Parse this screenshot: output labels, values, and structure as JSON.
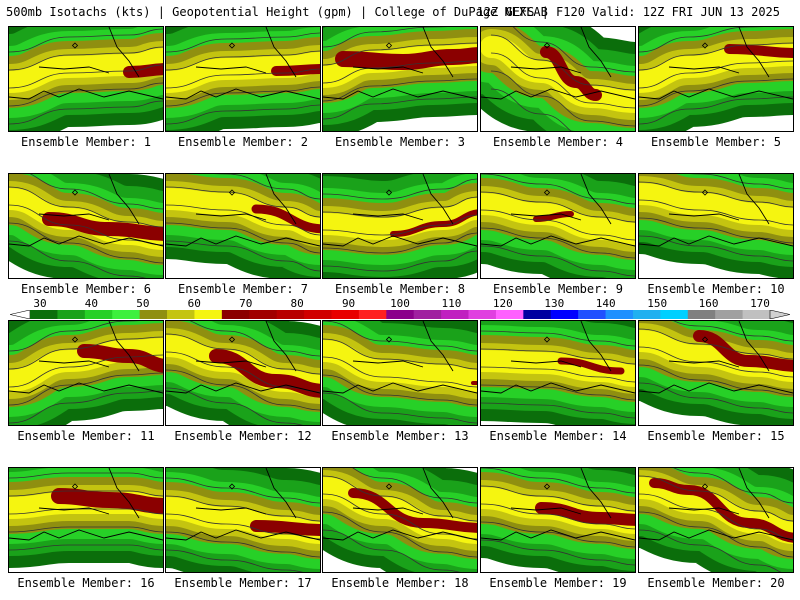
{
  "header": {
    "title_left": "500mb Isotachs (kts) | Geopotential Height (gpm) | College of DuPage NEXLAB",
    "title_right": "12Z GEFS | F120 Valid: 12Z FRI JUN 13 2025"
  },
  "colorbar": {
    "labels": [
      "30",
      "40",
      "50",
      "60",
      "70",
      "80",
      "90",
      "100",
      "110",
      "120",
      "130",
      "140",
      "150",
      "160",
      "170"
    ],
    "colors": [
      "#0b6e0b",
      "#1aa21a",
      "#27d027",
      "#3ef03e",
      "#8f8f10",
      "#c4c410",
      "#f5f510",
      "#8b0000",
      "#a10000",
      "#b80000",
      "#d00000",
      "#e80000",
      "#ff2020",
      "#8b008b",
      "#a020a0",
      "#c020c0",
      "#e040e0",
      "#ff60ff",
      "#0000a0",
      "#0000ff",
      "#2050ff",
      "#1e90ff",
      "#20b0f0",
      "#00d0ff",
      "#808080",
      "#a0a0a0",
      "#c0c0c0"
    ]
  },
  "panels": [
    {
      "label": "Ensemble Member: 1",
      "jet": [
        [
          0,
          55
        ],
        [
          60,
          40
        ],
        [
          120,
          38
        ],
        [
          155,
          32
        ]
      ],
      "core": [
        [
          120,
          45
        ],
        [
          160,
          42
        ]
      ],
      "core_w": 12
    },
    {
      "label": "Ensemble Member: 2",
      "jet": [
        [
          0,
          55
        ],
        [
          60,
          42
        ],
        [
          120,
          40
        ],
        [
          155,
          36
        ]
      ],
      "core": [
        [
          110,
          44
        ],
        [
          160,
          42
        ]
      ],
      "core_w": 10
    },
    {
      "label": "Ensemble Member: 3",
      "jet": [
        [
          0,
          50
        ],
        [
          50,
          35
        ],
        [
          110,
          30
        ],
        [
          155,
          28
        ]
      ],
      "core": [
        [
          20,
          32
        ],
        [
          80,
          35
        ],
        [
          130,
          30
        ],
        [
          160,
          28
        ]
      ],
      "core_w": 16
    },
    {
      "label": "Ensemble Member: 4",
      "jet": [
        [
          10,
          20
        ],
        [
          60,
          45
        ],
        [
          110,
          70
        ],
        [
          155,
          75
        ]
      ],
      "core": [
        [
          65,
          25
        ],
        [
          95,
          55
        ],
        [
          115,
          68
        ]
      ],
      "core_w": 12
    },
    {
      "label": "Ensemble Member: 5",
      "jet": [
        [
          0,
          55
        ],
        [
          50,
          40
        ],
        [
          110,
          30
        ],
        [
          155,
          28
        ]
      ],
      "core": [
        [
          90,
          22
        ],
        [
          160,
          26
        ]
      ],
      "core_w": 10
    },
    {
      "label": "Ensemble Member: 6",
      "jet": [
        [
          0,
          25
        ],
        [
          60,
          45
        ],
        [
          120,
          60
        ],
        [
          155,
          65
        ]
      ],
      "core": [
        [
          40,
          45
        ],
        [
          100,
          55
        ],
        [
          160,
          60
        ]
      ],
      "core_w": 14
    },
    {
      "label": "Ensemble Member: 7",
      "jet": [
        [
          0,
          25
        ],
        [
          60,
          30
        ],
        [
          120,
          45
        ],
        [
          155,
          55
        ]
      ],
      "core": [
        [
          90,
          35
        ],
        [
          160,
          55
        ]
      ],
      "core_w": 9
    },
    {
      "label": "Ensemble Member: 8",
      "jet": [
        [
          0,
          50
        ],
        [
          60,
          55
        ],
        [
          120,
          45
        ],
        [
          155,
          35
        ]
      ],
      "core": [
        [
          70,
          60
        ],
        [
          120,
          50
        ],
        [
          160,
          38
        ]
      ],
      "core_w": 6
    },
    {
      "label": "Ensemble Member: 9",
      "jet": [
        [
          0,
          30
        ],
        [
          60,
          40
        ],
        [
          120,
          55
        ],
        [
          155,
          60
        ]
      ],
      "core": [
        [
          55,
          45
        ],
        [
          90,
          40
        ]
      ],
      "core_w": 6
    },
    {
      "label": "Ensemble Member: 10",
      "jet": [
        [
          0,
          20
        ],
        [
          60,
          30
        ],
        [
          120,
          40
        ],
        [
          155,
          45
        ]
      ],
      "core": [],
      "core_w": 0
    },
    {
      "label": "Ensemble Member: 11",
      "jet": [
        [
          0,
          60
        ],
        [
          60,
          40
        ],
        [
          120,
          30
        ],
        [
          155,
          28
        ]
      ],
      "core": [
        [
          75,
          30
        ],
        [
          120,
          35
        ],
        [
          160,
          45
        ]
      ],
      "core_w": 14
    },
    {
      "label": "Ensemble Member: 12",
      "jet": [
        [
          0,
          25
        ],
        [
          60,
          40
        ],
        [
          120,
          60
        ],
        [
          155,
          65
        ]
      ],
      "core": [
        [
          50,
          35
        ],
        [
          110,
          60
        ],
        [
          160,
          70
        ]
      ],
      "core_w": 14
    },
    {
      "label": "Ensemble Member: 13",
      "jet": [
        [
          0,
          30
        ],
        [
          60,
          50
        ],
        [
          120,
          55
        ],
        [
          155,
          60
        ]
      ],
      "core": [
        [
          150,
          62
        ],
        [
          160,
          62
        ]
      ],
      "core_w": 4
    },
    {
      "label": "Ensemble Member: 14",
      "jet": [
        [
          0,
          40
        ],
        [
          60,
          42
        ],
        [
          120,
          50
        ],
        [
          155,
          55
        ]
      ],
      "core": [
        [
          80,
          40
        ],
        [
          140,
          50
        ]
      ],
      "core_w": 7
    },
    {
      "label": "Ensemble Member: 15",
      "jet": [
        [
          0,
          20
        ],
        [
          60,
          35
        ],
        [
          120,
          45
        ],
        [
          155,
          50
        ]
      ],
      "core": [
        [
          60,
          15
        ],
        [
          110,
          40
        ],
        [
          160,
          45
        ]
      ],
      "core_w": 12
    },
    {
      "label": "Ensemble Member: 16",
      "jet": [
        [
          0,
          40
        ],
        [
          60,
          35
        ],
        [
          120,
          35
        ],
        [
          155,
          40
        ]
      ],
      "core": [
        [
          50,
          28
        ],
        [
          100,
          32
        ],
        [
          160,
          38
        ]
      ],
      "core_w": 16
    },
    {
      "label": "Ensemble Member: 17",
      "jet": [
        [
          0,
          40
        ],
        [
          60,
          50
        ],
        [
          120,
          60
        ],
        [
          155,
          65
        ]
      ],
      "core": [
        [
          90,
          58
        ],
        [
          160,
          62
        ]
      ],
      "core_w": 12
    },
    {
      "label": "Ensemble Member: 18",
      "jet": [
        [
          0,
          20
        ],
        [
          60,
          40
        ],
        [
          120,
          60
        ],
        [
          155,
          65
        ]
      ],
      "core": [
        [
          30,
          25
        ],
        [
          100,
          55
        ],
        [
          160,
          60
        ]
      ],
      "core_w": 10
    },
    {
      "label": "Ensemble Member: 19",
      "jet": [
        [
          0,
          30
        ],
        [
          60,
          40
        ],
        [
          120,
          50
        ],
        [
          155,
          55
        ]
      ],
      "core": [
        [
          60,
          40
        ],
        [
          120,
          50
        ],
        [
          160,
          52
        ]
      ],
      "core_w": 12
    },
    {
      "label": "Ensemble Member: 20",
      "jet": [
        [
          0,
          20
        ],
        [
          60,
          35
        ],
        [
          120,
          55
        ],
        [
          155,
          65
        ]
      ],
      "core": [
        [
          15,
          15
        ],
        [
          50,
          22
        ],
        [
          110,
          55
        ],
        [
          160,
          70
        ]
      ],
      "core_w": 10
    }
  ]
}
